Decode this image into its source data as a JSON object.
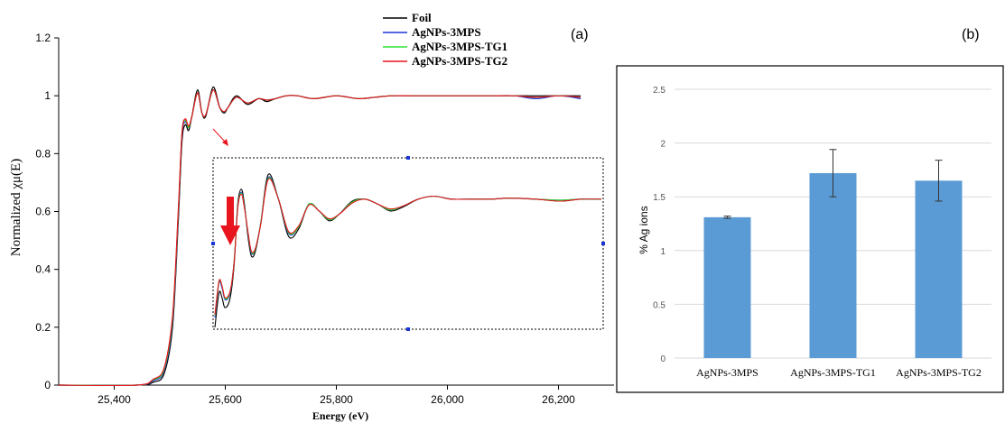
{
  "chart_data": [
    {
      "type": "line",
      "panel_label": "(a)",
      "xlabel": "Energy (eV)",
      "ylabel": "Normalized χμ(E)",
      "xlim": [
        25300,
        26300
      ],
      "ylim": [
        0,
        1.2
      ],
      "x_ticks": [
        "25,400",
        "25,600",
        "25,800",
        "26,000",
        "26,200"
      ],
      "x_tick_values": [
        25400,
        25600,
        25800,
        26000,
        26200
      ],
      "y_ticks": [
        "0",
        "0.2",
        "0.4",
        "0.6",
        "0.8",
        "1",
        "1.2"
      ],
      "y_tick_values": [
        0,
        0.2,
        0.4,
        0.6,
        0.8,
        1.0,
        1.2
      ],
      "legend_position": "top-center",
      "series": [
        {
          "name": "Foil",
          "color": "#000000",
          "x": [
            25300,
            25440,
            25470,
            25490,
            25505,
            25515,
            25522,
            25528,
            25534,
            25540,
            25550,
            25558,
            25565,
            25578,
            25590,
            25598,
            25605,
            25620,
            25640,
            25660,
            25675,
            25690,
            25710,
            25730,
            25760,
            25800,
            25840,
            25870,
            25900,
            25940,
            25980,
            26020,
            26080,
            26120,
            26160,
            26200,
            26240
          ],
          "y": [
            0,
            0,
            0.01,
            0.04,
            0.2,
            0.55,
            0.84,
            0.9,
            0.88,
            0.93,
            1.02,
            0.94,
            0.93,
            1.03,
            0.96,
            0.94,
            0.96,
            1.0,
            0.97,
            0.99,
            0.98,
            0.99,
            1.0,
            1.0,
            0.99,
            1.0,
            0.99,
            0.995,
            1.0,
            1.0,
            1.0,
            1.0,
            1.0,
            1.0,
            1.0,
            1.0,
            1.0
          ]
        },
        {
          "name": "AgNPs-3MPS",
          "color": "#1a35d6",
          "x": [
            25300,
            25440,
            25470,
            25490,
            25505,
            25515,
            25522,
            25528,
            25534,
            25540,
            25550,
            25558,
            25565,
            25578,
            25590,
            25598,
            25605,
            25620,
            25640,
            25660,
            25675,
            25690,
            25710,
            25730,
            25760,
            25800,
            25840,
            25870,
            25900,
            25940,
            25980,
            26020,
            26080,
            26120,
            26160,
            26200,
            26240
          ],
          "y": [
            0,
            0,
            0.015,
            0.05,
            0.22,
            0.57,
            0.86,
            0.91,
            0.89,
            0.93,
            1.01,
            0.94,
            0.935,
            1.02,
            0.96,
            0.945,
            0.96,
            0.995,
            0.975,
            0.99,
            0.985,
            0.99,
            1.0,
            1.0,
            0.99,
            1.0,
            0.99,
            0.995,
            1.0,
            1.0,
            1.0,
            1.0,
            1.0,
            1.0,
            0.99,
            1.0,
            0.99
          ]
        },
        {
          "name": "AgNPs-3MPS-TG1",
          "color": "#2ee02e",
          "x": [
            25300,
            25440,
            25470,
            25490,
            25505,
            25515,
            25522,
            25528,
            25534,
            25540,
            25550,
            25558,
            25565,
            25578,
            25590,
            25598,
            25605,
            25620,
            25640,
            25660,
            25675,
            25690,
            25710,
            25730,
            25760,
            25800,
            25840,
            25870,
            25900,
            25940,
            25980,
            26020,
            26080,
            26120,
            26160,
            26200,
            26240
          ],
          "y": [
            0,
            0,
            0.018,
            0.055,
            0.23,
            0.58,
            0.87,
            0.915,
            0.89,
            0.93,
            1.01,
            0.94,
            0.935,
            1.02,
            0.96,
            0.945,
            0.96,
            0.995,
            0.975,
            0.99,
            0.985,
            0.99,
            1.0,
            1.0,
            0.99,
            1.0,
            0.99,
            0.995,
            1.0,
            1.0,
            1.0,
            1.0,
            1.0,
            1.0,
            0.995,
            1.0,
            0.995
          ]
        },
        {
          "name": "AgNPs-3MPS-TG2",
          "color": "#e8141e",
          "x": [
            25300,
            25440,
            25470,
            25490,
            25505,
            25515,
            25522,
            25528,
            25534,
            25540,
            25550,
            25558,
            25565,
            25578,
            25590,
            25598,
            25605,
            25620,
            25640,
            25660,
            25675,
            25690,
            25710,
            25730,
            25760,
            25800,
            25840,
            25870,
            25900,
            25940,
            25980,
            26020,
            26080,
            26120,
            26160,
            26200,
            26240
          ],
          "y": [
            0,
            0,
            0.02,
            0.06,
            0.24,
            0.59,
            0.87,
            0.92,
            0.895,
            0.93,
            1.01,
            0.94,
            0.935,
            1.02,
            0.96,
            0.945,
            0.96,
            0.995,
            0.975,
            0.99,
            0.985,
            0.99,
            1.0,
            1.0,
            0.99,
            1.0,
            0.99,
            0.995,
            1.0,
            1.0,
            1.0,
            1.0,
            1.0,
            1.0,
            0.995,
            1.0,
            0.995
          ]
        }
      ],
      "inset": {
        "xlim": [
          25520,
          26280
        ],
        "ylim": [
          0.86,
          1.03
        ],
        "series": [
          {
            "name": "Foil",
            "color": "#000000",
            "x": [
              25520,
              25528,
              25534,
              25540,
              25550,
              25558,
              25565,
              25572,
              25578,
              25585,
              25592,
              25600,
              25610,
              25625,
              25645,
              25665,
              25685,
              25705,
              25725,
              25745,
              25765,
              25790,
              25815,
              25840,
              25865,
              25890,
              25920,
              25950,
              25985,
              26020,
              26060,
              26100,
              26150,
              26200,
              26240,
              26280
            ],
            "y": [
              0.86,
              0.895,
              0.89,
              0.88,
              0.89,
              0.925,
              0.985,
              1.0,
              0.985,
              0.952,
              0.932,
              0.938,
              0.965,
              1.015,
              0.99,
              0.952,
              0.96,
              0.985,
              0.978,
              0.968,
              0.975,
              0.988,
              0.99,
              0.985,
              0.978,
              0.982,
              0.99,
              0.993,
              0.99,
              0.99,
              0.99,
              0.991,
              0.99,
              0.988,
              0.99,
              0.99
            ]
          },
          {
            "name": "AgNPs-3MPS",
            "color": "#1a35d6",
            "x": [
              25520,
              25528,
              25534,
              25540,
              25550,
              25558,
              25565,
              25572,
              25578,
              25585,
              25592,
              25600,
              25610,
              25625,
              25645,
              25665,
              25685,
              25705,
              25725,
              25745,
              25765,
              25790,
              25815,
              25840,
              25865,
              25890,
              25920,
              25950,
              25985,
              26020,
              26060,
              26100,
              26150,
              26200,
              26240,
              26280
            ],
            "y": [
              0.87,
              0.905,
              0.9,
              0.888,
              0.895,
              0.928,
              0.982,
              0.997,
              0.983,
              0.955,
              0.935,
              0.94,
              0.965,
              1.012,
              0.99,
              0.955,
              0.962,
              0.985,
              0.978,
              0.969,
              0.975,
              0.987,
              0.99,
              0.985,
              0.979,
              0.983,
              0.99,
              0.993,
              0.99,
              0.99,
              0.99,
              0.991,
              0.99,
              0.989,
              0.99,
              0.99
            ]
          },
          {
            "name": "AgNPs-3MPS-TG1",
            "color": "#2ee02e",
            "x": [
              25520,
              25528,
              25534,
              25540,
              25550,
              25558,
              25565,
              25572,
              25578,
              25585,
              25592,
              25600,
              25610,
              25625,
              25645,
              25665,
              25685,
              25705,
              25725,
              25745,
              25765,
              25790,
              25815,
              25840,
              25865,
              25890,
              25920,
              25950,
              25985,
              26020,
              26060,
              26100,
              26150,
              26200,
              26240,
              26280
            ],
            "y": [
              0.872,
              0.906,
              0.902,
              0.889,
              0.896,
              0.928,
              0.982,
              0.996,
              0.982,
              0.956,
              0.936,
              0.94,
              0.965,
              1.011,
              0.99,
              0.956,
              0.962,
              0.985,
              0.978,
              0.969,
              0.975,
              0.987,
              0.99,
              0.985,
              0.979,
              0.983,
              0.99,
              0.993,
              0.99,
              0.99,
              0.99,
              0.991,
              0.99,
              0.989,
              0.99,
              0.99
            ]
          },
          {
            "name": "AgNPs-3MPS-TG2",
            "color": "#e8141e",
            "x": [
              25520,
              25528,
              25534,
              25540,
              25550,
              25558,
              25565,
              25572,
              25578,
              25585,
              25592,
              25600,
              25610,
              25625,
              25645,
              25665,
              25685,
              25705,
              25725,
              25745,
              25765,
              25790,
              25815,
              25840,
              25865,
              25890,
              25920,
              25950,
              25985,
              26020,
              26060,
              26100,
              26150,
              26200,
              26240,
              26280
            ],
            "y": [
              0.873,
              0.907,
              0.902,
              0.89,
              0.897,
              0.927,
              0.981,
              0.995,
              0.981,
              0.957,
              0.937,
              0.941,
              0.964,
              1.01,
              0.99,
              0.957,
              0.963,
              0.984,
              0.978,
              0.97,
              0.975,
              0.986,
              0.99,
              0.985,
              0.98,
              0.983,
              0.99,
              0.993,
              0.99,
              0.99,
              0.99,
              0.991,
              0.99,
              0.988,
              0.99,
              0.99
            ]
          }
        ]
      }
    },
    {
      "type": "bar",
      "panel_label": "(b)",
      "ylabel": "% Ag ions",
      "ylim": [
        0,
        2.5
      ],
      "y_ticks": [
        "0",
        "0.5",
        "1",
        "1.5",
        "2",
        "2.5"
      ],
      "y_tick_values": [
        0,
        0.5,
        1,
        1.5,
        2,
        2.5
      ],
      "categories": [
        "AgNPs-3MPS",
        "AgNPs-3MPS-TG1",
        "AgNPs-3MPS-TG2"
      ],
      "values": [
        1.31,
        1.72,
        1.65
      ],
      "errors": [
        0.01,
        0.22,
        0.19
      ],
      "bar_color": "#5b9bd5",
      "grid": true
    }
  ]
}
